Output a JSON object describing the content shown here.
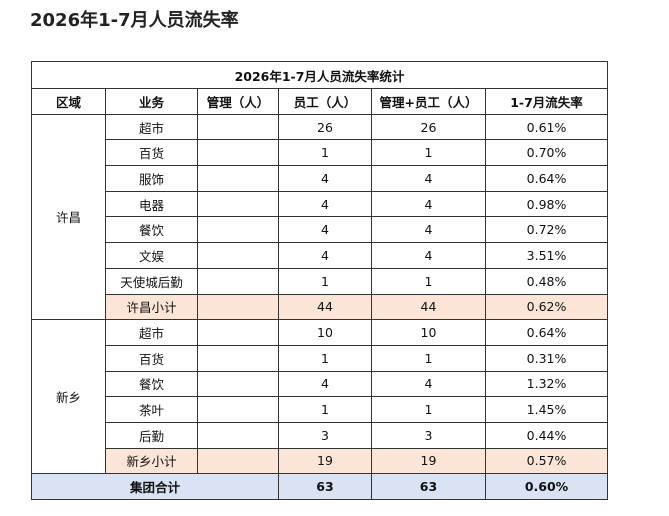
{
  "header": {
    "title": "2026年1-7月人员流失率"
  },
  "table": {
    "caption": "2026年1-7月人员流失率统计",
    "columns": [
      "区域",
      "业务",
      "管理（人）",
      "员工（人）",
      "管理+员工（人）",
      "1-7月流失率"
    ],
    "groups": [
      {
        "region": "许昌",
        "rows": [
          {
            "business": "超市",
            "staff": 26,
            "total": 26,
            "rate": "0.61%"
          },
          {
            "business": "百货",
            "staff": 1,
            "total": 1,
            "rate": "0.70%"
          },
          {
            "business": "服饰",
            "staff": 4,
            "total": 4,
            "rate": "0.64%"
          },
          {
            "business": "电器",
            "staff": 4,
            "total": 4,
            "rate": "0.98%"
          },
          {
            "business": "餐饮",
            "staff": 4,
            "total": 4,
            "rate": "0.72%"
          },
          {
            "business": "文娱",
            "staff": 4,
            "total": 4,
            "rate": "3.51%"
          },
          {
            "business": "天使城后勤",
            "staff": 1,
            "total": 1,
            "rate": "0.48%"
          }
        ],
        "subtotal": {
          "label": "许昌小计",
          "staff": 44,
          "total": 44,
          "rate": "0.62%"
        }
      },
      {
        "region": "新乡",
        "rows": [
          {
            "business": "超市",
            "staff": 10,
            "total": 10,
            "rate": "0.64%"
          },
          {
            "business": "百货",
            "staff": 1,
            "total": 1,
            "rate": "0.31%"
          },
          {
            "business": "餐饮",
            "staff": 4,
            "total": 4,
            "rate": "1.32%"
          },
          {
            "business": "茶叶",
            "staff": 1,
            "total": 1,
            "rate": "1.45%"
          },
          {
            "business": "后勤",
            "staff": 3,
            "total": 3,
            "rate": "0.44%"
          }
        ],
        "subtotal": {
          "label": "新乡小计",
          "staff": 19,
          "total": 19,
          "rate": "0.57%"
        }
      }
    ],
    "grand_total": {
      "label": "集团合计",
      "staff": 63,
      "total": 63,
      "rate": "0.60%"
    }
  }
}
